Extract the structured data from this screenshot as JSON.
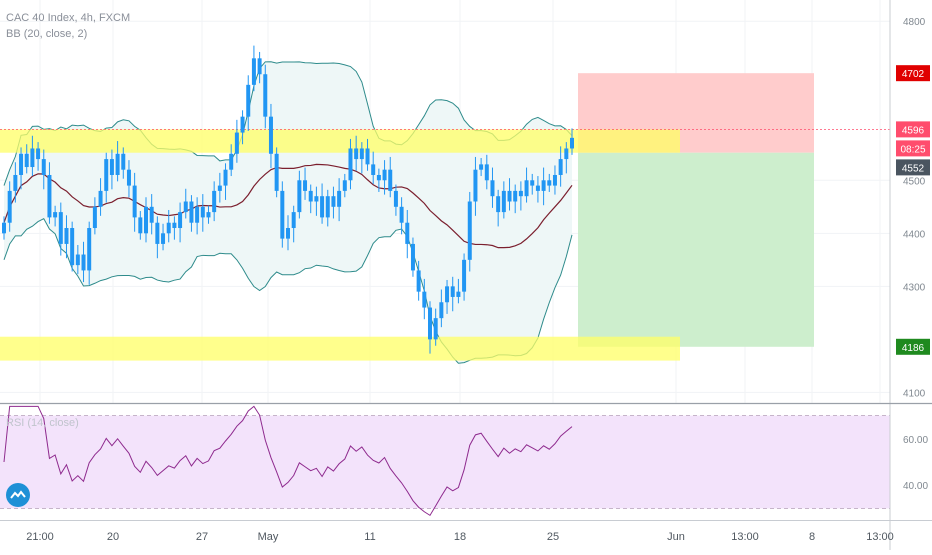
{
  "header": {
    "symbol_line": "CAC 40 Index, 4h, FXCM",
    "indicator_line": "BB (20, close, 2)"
  },
  "rsi_panel": {
    "label": "RSI (14, close)"
  },
  "price_axis": {
    "ticks": [
      "4800",
      "4500",
      "4400",
      "4300",
      "4100"
    ],
    "target_label": "4702",
    "current_label": "4596",
    "countdown_label": "08:25",
    "entry_label": "4552",
    "stop_label": "4186"
  },
  "rsi_axis": {
    "ticks": [
      "60.00",
      "40.00"
    ]
  },
  "time_axis": {
    "ticks": [
      "21:00",
      "20",
      "27",
      "May",
      "11",
      "18",
      "25",
      "Jun",
      "13:00",
      "8",
      "13:00"
    ]
  },
  "colors": {
    "candle": "#2196f3",
    "bb_band": "#2e8b8b",
    "bb_mid": "#7b1f2e",
    "band_fill": "#eef7f7",
    "zone_yellow": "#ffff66",
    "target_zone": "#ffcccc",
    "stop_zone": "#cdeecd",
    "rsi_line": "#8e2a8e",
    "rsi_fill": "#f3e3fb",
    "target_badge": "#e00000",
    "stop_badge": "#1f8a1f",
    "current_badge": "#ff4d6d",
    "entry_badge": "#4a5560",
    "logo": "#1e90d6"
  },
  "chart_data": {
    "type": "candlestick",
    "title": "CAC 40 Index, 4h, FXCM",
    "indicators": [
      "BB (20, close, 2)",
      "RSI (14, close)"
    ],
    "price_range": [
      4080,
      4840
    ],
    "rsi_range": [
      25,
      75
    ],
    "candles_close": [
      4420,
      4480,
      4510,
      4550,
      4525,
      4560,
      4540,
      4510,
      4430,
      4440,
      4380,
      4410,
      4340,
      4360,
      4330,
      4410,
      4450,
      4480,
      4540,
      4510,
      4550,
      4520,
      4490,
      4430,
      4400,
      4450,
      4420,
      4380,
      4400,
      4420,
      4410,
      4440,
      4460,
      4420,
      4450,
      4430,
      4440,
      4480,
      4490,
      4520,
      4550,
      4590,
      4620,
      4680,
      4730,
      4700,
      4620,
      4550,
      4480,
      4390,
      4410,
      4440,
      4500,
      4480,
      4460,
      4470,
      4430,
      4470,
      4450,
      4480,
      4500,
      4560,
      4540,
      4560,
      4530,
      4510,
      4500,
      4520,
      4480,
      4450,
      4420,
      4380,
      4330,
      4290,
      4260,
      4200,
      4240,
      4270,
      4300,
      4280,
      4290,
      4350,
      4460,
      4520,
      4530,
      4500,
      4470,
      4440,
      4480,
      4460,
      4480,
      4470,
      4500,
      4490,
      4480,
      4500,
      4490,
      4510,
      4540,
      4560,
      4580
    ],
    "target_price": 4702,
    "current_price": 4596,
    "entry_price": 4552,
    "stop_price": 4186,
    "resistance_zone": [
      4552,
      4596
    ],
    "support_zone": [
      4160,
      4205
    ],
    "rsi_levels": [
      70,
      30
    ]
  }
}
